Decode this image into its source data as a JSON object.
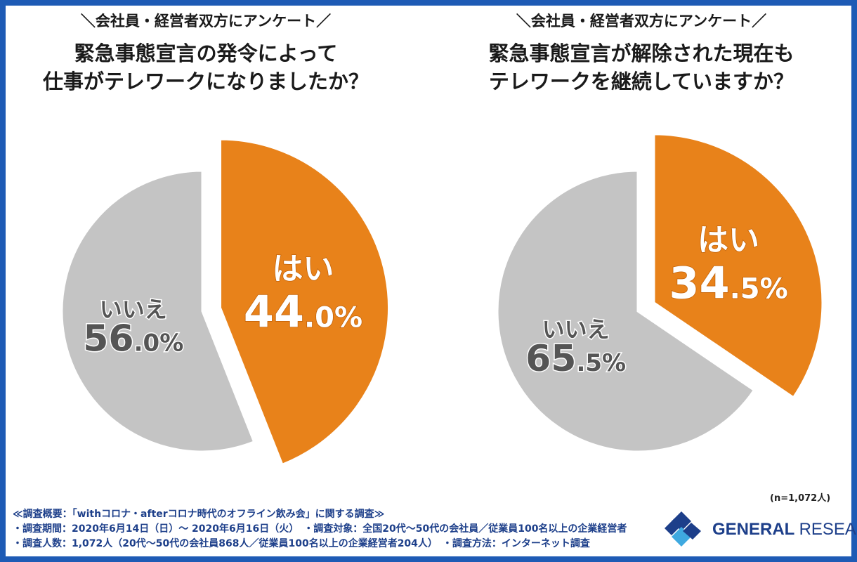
{
  "charts": [
    {
      "kicker": "＼会社員・経営者双方にアンケート／",
      "question_line1": "緊急事態宣言の発令によって",
      "question_line2": "仕事がテレワークになりましたか？"
    },
    {
      "kicker": "＼会社員・経営者双方にアンケート／",
      "question_line1": "緊急事態宣言が解除された現在も",
      "question_line2": "テレワークを継続していますか？"
    }
  ],
  "chart_data": [
    {
      "type": "pie",
      "title": "緊急事態宣言の発令によって仕事がテレワークになりましたか？",
      "slices": [
        {
          "label": "はい",
          "value": 44.0,
          "int": "44",
          "dec": ".0%",
          "color": "#e8821a",
          "text_color": "#ffffff",
          "outline": "#c05f05"
        },
        {
          "label": "いいえ",
          "value": 56.0,
          "int": "56",
          "dec": ".0%",
          "color": "#c4c4c4",
          "text_color": "#555555",
          "outline": "#ffffff"
        }
      ]
    },
    {
      "type": "pie",
      "title": "緊急事態宣言が解除された現在もテレワークを継続していますか？",
      "slices": [
        {
          "label": "はい",
          "value": 34.5,
          "int": "34",
          "dec": ".5%",
          "color": "#e8821a",
          "text_color": "#ffffff",
          "outline": "#c05f05"
        },
        {
          "label": "いいえ",
          "value": 65.5,
          "int": "65",
          "dec": ".5%",
          "color": "#c4c4c4",
          "text_color": "#555555",
          "outline": "#ffffff"
        }
      ]
    }
  ],
  "sample_note": "(n=1,072人)",
  "footer": {
    "line1": "≪調査概要：「withコロナ・afterコロナ時代のオフライン飲み会」に関する調査≫",
    "line2": "・調査期間：2020年6月14日（日）～ 2020年6月16日（火）　・調査対象：全国20代～50代の会社員／従業員100名以上の企業経営者",
    "line3": "・調査人数：1,072人（20代～50代の会社員868人／従業員100名以上の企業経営者204人）　・調査方法：インターネット調査"
  },
  "logo": {
    "word1": "GENERAL",
    "word2": "RESEARCH",
    "color": "#1d3f8a",
    "accent": "#3fa9e0"
  }
}
